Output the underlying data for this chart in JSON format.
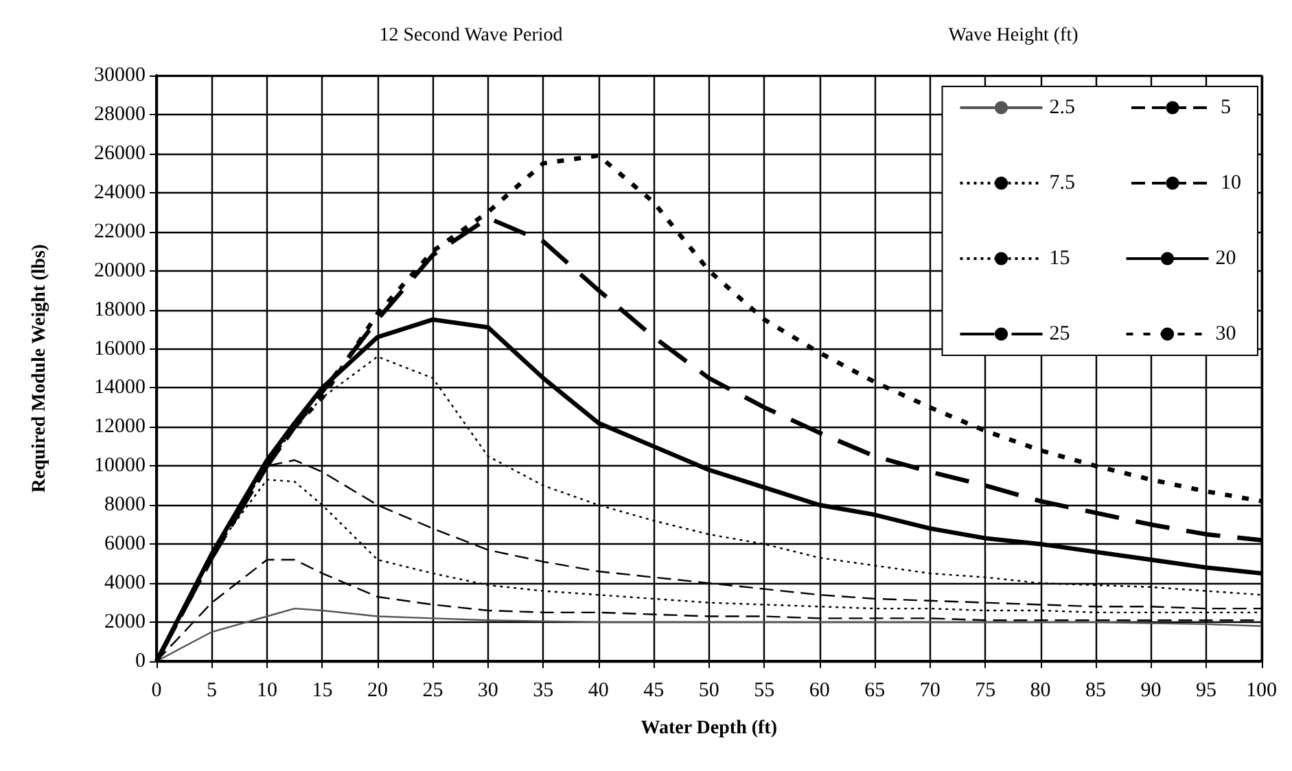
{
  "chart_data": {
    "type": "line",
    "title": "12 Second Wave Period",
    "legend_title": "Wave Height (ft)",
    "xlabel": "Water Depth (ft)",
    "ylabel": "Required Module Weight (lbs)",
    "x": [
      0,
      5,
      10,
      12.5,
      15,
      20,
      25,
      30,
      35,
      40,
      45,
      50,
      55,
      60,
      65,
      70,
      75,
      80,
      85,
      90,
      95,
      100
    ],
    "series": [
      {
        "name": "2.5",
        "color": "#555555",
        "line_style": "solid",
        "values": [
          0,
          1500,
          2300,
          2700,
          2600,
          2300,
          2200,
          2100,
          2050,
          2000,
          2000,
          2000,
          2000,
          2000,
          2000,
          2000,
          2000,
          2000,
          2000,
          1950,
          1900,
          1800
        ]
      },
      {
        "name": "5",
        "color": "#000000",
        "line_style": "dashed",
        "values": [
          0,
          3000,
          5200,
          5200,
          4500,
          3300,
          2900,
          2600,
          2500,
          2500,
          2400,
          2300,
          2300,
          2200,
          2200,
          2200,
          2100,
          2100,
          2100,
          2100,
          2100,
          2100
        ]
      },
      {
        "name": "7.5",
        "color": "#000000",
        "line_style": "dotted",
        "values": [
          0,
          5500,
          9300,
          9200,
          8000,
          5200,
          4500,
          3900,
          3600,
          3400,
          3200,
          3000,
          2900,
          2800,
          2700,
          2700,
          2600,
          2600,
          2500,
          2500,
          2500,
          2500
        ]
      },
      {
        "name": "10",
        "color": "#000000",
        "line_style": "dashed",
        "values": [
          0,
          5500,
          10000,
          10300,
          9700,
          8000,
          6800,
          5700,
          5100,
          4600,
          4300,
          4000,
          3700,
          3400,
          3200,
          3100,
          3000,
          2900,
          2800,
          2800,
          2700,
          2700
        ]
      },
      {
        "name": "15",
        "color": "#000000",
        "line_style": "dotted",
        "values": [
          0,
          5500,
          10000,
          12000,
          13500,
          15600,
          14500,
          10500,
          9000,
          8000,
          7200,
          6500,
          6000,
          5300,
          4900,
          4500,
          4300,
          4000,
          3900,
          3800,
          3600,
          3400
        ]
      },
      {
        "name": "20",
        "color": "#000000",
        "line_style": "solid",
        "values": [
          0,
          5500,
          10300,
          12200,
          14000,
          16600,
          17500,
          17100,
          14500,
          12200,
          11000,
          9800,
          8900,
          8000,
          7500,
          6800,
          6300,
          6000,
          5600,
          5200,
          4800,
          4500
        ]
      },
      {
        "name": "25",
        "color": "#000000",
        "line_style": "dashed",
        "values": [
          0,
          5300,
          10000,
          12000,
          13800,
          17500,
          20800,
          22700,
          21500,
          19000,
          16600,
          14500,
          13000,
          11700,
          10500,
          9700,
          9000,
          8200,
          7600,
          7000,
          6500,
          6200
        ]
      },
      {
        "name": "30",
        "color": "#000000",
        "line_style": "dotted",
        "values": [
          0,
          5300,
          10000,
          12000,
          13500,
          17800,
          21000,
          23000,
          25500,
          25900,
          23500,
          20000,
          17500,
          15800,
          14300,
          13000,
          11800,
          10800,
          10000,
          9300,
          8700,
          8200
        ]
      }
    ],
    "xlim": [
      0,
      100
    ],
    "xticks": [
      0,
      5,
      10,
      15,
      20,
      25,
      30,
      35,
      40,
      45,
      50,
      55,
      60,
      65,
      70,
      75,
      80,
      85,
      90,
      95,
      100
    ],
    "ylim": [
      0,
      30000
    ],
    "yticks": [
      0,
      2000,
      4000,
      6000,
      8000,
      10000,
      12000,
      14000,
      16000,
      18000,
      20000,
      22000,
      24000,
      26000,
      28000,
      30000
    ],
    "grid": true,
    "legend": "top right",
    "marker": "none"
  }
}
